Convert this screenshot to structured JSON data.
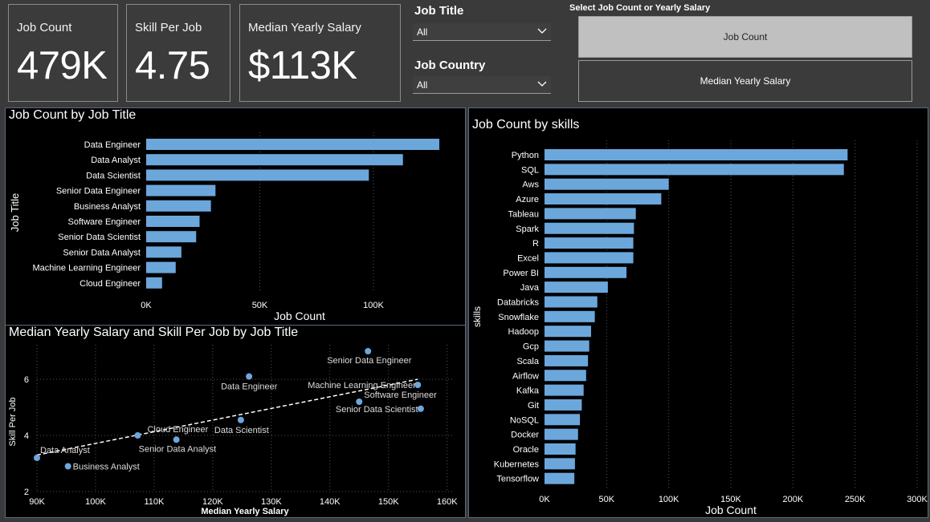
{
  "kpis": [
    {
      "label": "Job Count",
      "value": "479K"
    },
    {
      "label": "Skill Per Job",
      "value": "4.75"
    },
    {
      "label": "Median Yearly Salary",
      "value": "$113K"
    }
  ],
  "slicers": {
    "job_title": {
      "label": "Job Title",
      "value": "All"
    },
    "job_country": {
      "label": "Job Country",
      "value": "All"
    }
  },
  "selector": {
    "title": "Select Job Count or Yearly Salary",
    "options": [
      "Job Count",
      "Median Yearly Salary"
    ],
    "selected": "Job Count"
  },
  "colors": {
    "bar": "#6ca7dc",
    "point": "#6ca7dc",
    "grid": "#555555"
  },
  "chart_data": [
    {
      "id": "title_chart",
      "type": "bar",
      "orientation": "horizontal",
      "title": "Job Count by Job Title",
      "xlabel": "Job Count",
      "ylabel": "Job Title",
      "categories": [
        "Data Engineer",
        "Data Analyst",
        "Data Scientist",
        "Senior Data Engineer",
        "Business Analyst",
        "Software Engineer",
        "Senior Data Scientist",
        "Senior Data Analyst",
        "Machine Learning Engineer",
        "Cloud Engineer"
      ],
      "values": [
        129000,
        113000,
        98000,
        30500,
        28500,
        23500,
        22000,
        15500,
        13000,
        7000
      ],
      "xlim": [
        0,
        135000
      ],
      "xticks": [
        0,
        50000,
        100000
      ],
      "xtick_labels": [
        "0K",
        "50K",
        "100K"
      ],
      "grid": true
    },
    {
      "id": "scatter_chart",
      "type": "scatter",
      "title": "Median Yearly Salary and Skill Per Job by Job Title",
      "xlabel": "Median Yearly Salary",
      "ylabel": "Skill Per Job",
      "xlim": [
        90000,
        161000
      ],
      "ylim": [
        2,
        7
      ],
      "xticks": [
        90000,
        100000,
        110000,
        120000,
        130000,
        140000,
        150000,
        160000
      ],
      "xtick_labels": [
        "90K",
        "100K",
        "110K",
        "120K",
        "130K",
        "140K",
        "150K",
        "160K"
      ],
      "yticks": [
        2,
        4,
        6
      ],
      "ytick_labels": [
        "2",
        "4",
        "6"
      ],
      "points": [
        {
          "label": "Data Analyst",
          "x": 90000,
          "y": 3.2
        },
        {
          "label": "Business Analyst",
          "x": 95300,
          "y": 2.9
        },
        {
          "label": "Cloud Engineer",
          "x": 107200,
          "y": 4.0
        },
        {
          "label": "Senior Data Analyst",
          "x": 113800,
          "y": 3.85
        },
        {
          "label": "Data Scientist",
          "x": 124800,
          "y": 4.55
        },
        {
          "label": "Data Engineer",
          "x": 126200,
          "y": 6.1
        },
        {
          "label": "Senior Data Engineer",
          "x": 146500,
          "y": 7.0
        },
        {
          "label": "Software Engineer",
          "x": 145000,
          "y": 5.2
        },
        {
          "label": "Machine Learning Engineer",
          "x": 155000,
          "y": 5.8
        },
        {
          "label": "Senior Data Scientist",
          "x": 155500,
          "y": 4.95
        }
      ],
      "trendline": {
        "x": [
          90000,
          155000
        ],
        "y": [
          3.3,
          6.0
        ]
      },
      "grid": true
    },
    {
      "id": "skills_chart",
      "type": "bar",
      "orientation": "horizontal",
      "title": "Job Count by skills",
      "xlabel": "Job Count",
      "ylabel": "skills",
      "categories": [
        "Python",
        "SQL",
        "Aws",
        "Azure",
        "Tableau",
        "Spark",
        "R",
        "Excel",
        "Power BI",
        "Java",
        "Databricks",
        "Snowflake",
        "Hadoop",
        "Gcp",
        "Scala",
        "Airflow",
        "Kafka",
        "Git",
        "NoSQL",
        "Docker",
        "Oracle",
        "Kubernetes",
        "Tensorflow"
      ],
      "values": [
        244000,
        241000,
        100000,
        94000,
        73500,
        72000,
        71500,
        71500,
        66000,
        51000,
        42500,
        40500,
        37500,
        36000,
        35000,
        33500,
        31500,
        30000,
        28500,
        27000,
        25000,
        24500,
        24000
      ],
      "xlim": [
        0,
        300000
      ],
      "xticks": [
        0,
        50000,
        100000,
        150000,
        200000,
        250000,
        300000
      ],
      "xtick_labels": [
        "0K",
        "50K",
        "100K",
        "150K",
        "200K",
        "250K",
        "300K"
      ],
      "grid": true
    }
  ]
}
